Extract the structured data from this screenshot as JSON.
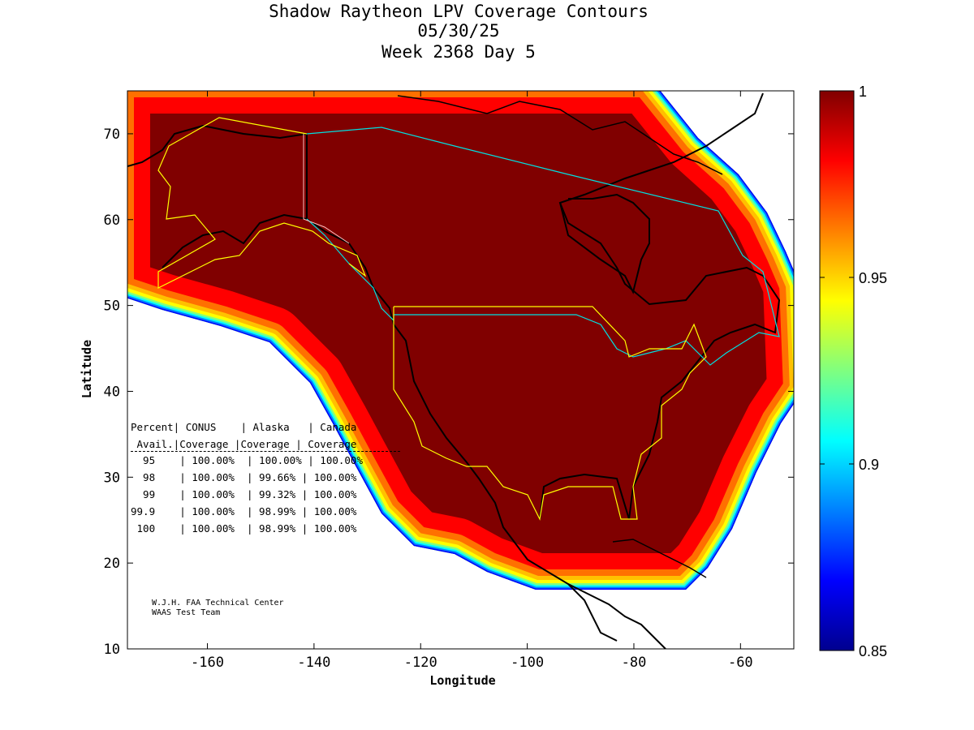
{
  "title": {
    "line1": "Shadow Raytheon LPV Coverage Contours",
    "line2": "05/30/25",
    "line3": "Week 2368 Day 5"
  },
  "chart_data": {
    "type": "heatmap",
    "title": "Shadow Raytheon LPV Coverage Contours",
    "xlabel": "Longitude",
    "ylabel": "Latitude",
    "xlim": [
      -175,
      -50
    ],
    "ylim": [
      10,
      75
    ],
    "xticks": [
      -160,
      -140,
      -120,
      -100,
      -80,
      -60
    ],
    "yticks": [
      10,
      20,
      30,
      40,
      50,
      60,
      70
    ],
    "colorbar": {
      "range": [
        0.85,
        1
      ],
      "ticks": [
        "0.85",
        "0.9",
        "0.95",
        "1"
      ],
      "colormap": "jet"
    }
  },
  "table": {
    "header1": "Percent| CONUS    | Alaska   | Canada",
    "header2": " Avail.|Coverage |Coverage | Coverage",
    "rows": [
      "  95    | 100.00%  | 100.00% | 100.00%",
      "  98    | 100.00%  | 99.66% | 100.00%",
      "  99    | 100.00%  | 99.32% | 100.00%",
      "99.9    | 100.00%  | 98.99% | 100.00%",
      " 100    | 100.00%  | 98.99% | 100.00%"
    ]
  },
  "credits": {
    "line1": "W.J.H. FAA Technical Center",
    "line2": "WAAS Test Team"
  },
  "colors": {
    "dark_red": "#800000",
    "us_border": "#ffff00",
    "canada_border": "#00e0e0",
    "coast": "#000000"
  }
}
